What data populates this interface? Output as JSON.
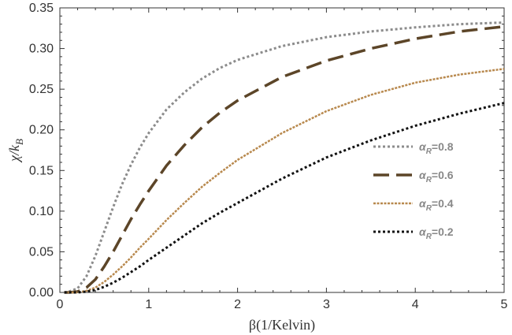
{
  "chart_data": {
    "type": "line",
    "title": "",
    "xlabel": "β(1/Kelvin)",
    "ylabel": "χ/k_B",
    "xlim": [
      0,
      5
    ],
    "ylim": [
      0,
      0.35
    ],
    "xticks": [
      "0",
      "1",
      "2",
      "3",
      "4",
      "5"
    ],
    "yticks": [
      "0.00",
      "0.05",
      "0.10",
      "0.15",
      "0.20",
      "0.25",
      "0.30",
      "0.35"
    ],
    "legend_position": "right-center",
    "series": [
      {
        "name": "α_R=0.8",
        "legend_symbol": "α",
        "legend_sub": "R",
        "legend_value": "=0.8",
        "color": "#8c8c8c",
        "style": "dotted",
        "x": [
          0.05,
          0.1,
          0.2,
          0.3,
          0.4,
          0.5,
          0.6,
          0.7,
          0.8,
          0.9,
          1.0,
          1.2,
          1.4,
          1.6,
          1.8,
          2.0,
          2.5,
          3.0,
          3.5,
          4.0,
          4.5,
          5.0
        ],
        "y": [
          0.0,
          0.001,
          0.005,
          0.02,
          0.045,
          0.075,
          0.105,
          0.133,
          0.157,
          0.178,
          0.196,
          0.225,
          0.246,
          0.263,
          0.276,
          0.286,
          0.303,
          0.314,
          0.321,
          0.326,
          0.33,
          0.332
        ]
      },
      {
        "name": "α_R=0.6",
        "legend_symbol": "α",
        "legend_sub": "R",
        "legend_value": "=0.6",
        "color": "#5c4528",
        "style": "long-dash",
        "x": [
          0.05,
          0.1,
          0.2,
          0.3,
          0.4,
          0.5,
          0.6,
          0.7,
          0.8,
          0.9,
          1.0,
          1.2,
          1.4,
          1.6,
          1.8,
          2.0,
          2.5,
          3.0,
          3.5,
          4.0,
          4.5,
          5.0
        ],
        "y": [
          0.0,
          0.0,
          0.001,
          0.006,
          0.016,
          0.032,
          0.05,
          0.07,
          0.09,
          0.108,
          0.125,
          0.156,
          0.181,
          0.203,
          0.221,
          0.236,
          0.265,
          0.285,
          0.3,
          0.312,
          0.321,
          0.327
        ]
      },
      {
        "name": "α_R=0.4",
        "legend_symbol": "α",
        "legend_sub": "R",
        "legend_value": "=0.4",
        "color": "#b8894e",
        "style": "fine-dash",
        "x": [
          0.05,
          0.1,
          0.2,
          0.3,
          0.4,
          0.5,
          0.6,
          0.7,
          0.8,
          0.9,
          1.0,
          1.2,
          1.4,
          1.6,
          1.8,
          2.0,
          2.5,
          3.0,
          3.5,
          4.0,
          4.5,
          5.0
        ],
        "y": [
          0.0,
          0.0,
          0.0,
          0.002,
          0.006,
          0.013,
          0.022,
          0.032,
          0.043,
          0.055,
          0.066,
          0.089,
          0.11,
          0.13,
          0.147,
          0.163,
          0.196,
          0.223,
          0.243,
          0.258,
          0.268,
          0.275
        ]
      },
      {
        "name": "α_R=0.2",
        "legend_symbol": "α",
        "legend_sub": "R",
        "legend_value": "=0.2",
        "color": "#111111",
        "style": "dotted",
        "x": [
          0.05,
          0.1,
          0.2,
          0.3,
          0.4,
          0.5,
          0.6,
          0.7,
          0.8,
          0.9,
          1.0,
          1.2,
          1.4,
          1.6,
          1.8,
          2.0,
          2.5,
          3.0,
          3.5,
          4.0,
          4.5,
          5.0
        ],
        "y": [
          0.0,
          0.0,
          0.0,
          0.001,
          0.003,
          0.007,
          0.012,
          0.018,
          0.025,
          0.032,
          0.04,
          0.055,
          0.07,
          0.085,
          0.098,
          0.11,
          0.14,
          0.166,
          0.187,
          0.205,
          0.22,
          0.233
        ]
      }
    ]
  }
}
